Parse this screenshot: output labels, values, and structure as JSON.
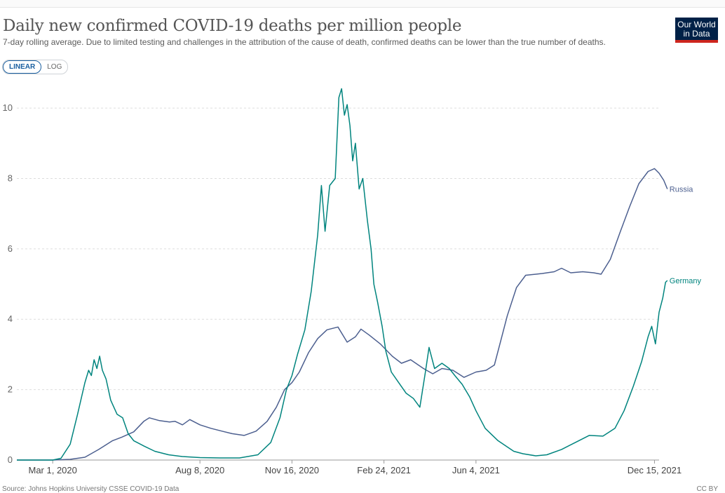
{
  "header": {
    "title": "Daily new confirmed COVID-19 deaths per million people",
    "subtitle": "7-day rolling average. Due to limited testing and challenges in the attribution of the cause of death, confirmed deaths can be lower than the true number of deaths.",
    "logo_line1": "Our World",
    "logo_line2": "in Data"
  },
  "controls": {
    "linear_label": "LINEAR",
    "log_label": "LOG",
    "selected": "LINEAR"
  },
  "footer": {
    "source": "Source: Johns Hopkins University CSSE COVID-19 Data",
    "license": "CC BY"
  },
  "colors": {
    "russia": "#4c5f8f",
    "germany": "#00847e",
    "grid": "#dddddd",
    "axis": "#999999"
  },
  "chart_data": {
    "type": "line",
    "title": "Daily new confirmed COVID-19 deaths per million people",
    "xlabel": "",
    "ylabel": "",
    "ylim": [
      0,
      10.6
    ],
    "x_range": [
      "2020-01-22",
      "2021-12-20"
    ],
    "y_ticks": [
      0,
      2,
      4,
      6,
      8,
      10
    ],
    "x_ticks": [
      {
        "date": "2020-03-01",
        "label": "Mar 1, 2020"
      },
      {
        "date": "2020-08-08",
        "label": "Aug 8, 2020"
      },
      {
        "date": "2020-11-16",
        "label": "Nov 16, 2020"
      },
      {
        "date": "2021-02-24",
        "label": "Feb 24, 2021"
      },
      {
        "date": "2021-06-04",
        "label": "Jun 4, 2021"
      },
      {
        "date": "2021-12-15",
        "label": "Dec 15, 2021"
      }
    ],
    "grid": "horizontal dashed",
    "legend": "line-end labels",
    "series": [
      {
        "name": "Russia",
        "points": [
          [
            "2020-01-22",
            0
          ],
          [
            "2020-03-01",
            0
          ],
          [
            "2020-03-20",
            0.02
          ],
          [
            "2020-04-05",
            0.08
          ],
          [
            "2020-04-20",
            0.3
          ],
          [
            "2020-05-05",
            0.55
          ],
          [
            "2020-05-15",
            0.65
          ],
          [
            "2020-05-28",
            0.8
          ],
          [
            "2020-06-08",
            1.1
          ],
          [
            "2020-06-14",
            1.2
          ],
          [
            "2020-06-25",
            1.12
          ],
          [
            "2020-07-06",
            1.08
          ],
          [
            "2020-07-12",
            1.1
          ],
          [
            "2020-07-20",
            1.0
          ],
          [
            "2020-07-28",
            1.15
          ],
          [
            "2020-08-08",
            1.0
          ],
          [
            "2020-08-20",
            0.9
          ],
          [
            "2020-09-01",
            0.82
          ],
          [
            "2020-09-12",
            0.75
          ],
          [
            "2020-09-25",
            0.7
          ],
          [
            "2020-10-08",
            0.82
          ],
          [
            "2020-10-20",
            1.1
          ],
          [
            "2020-10-30",
            1.5
          ],
          [
            "2020-11-08",
            2.0
          ],
          [
            "2020-11-16",
            2.2
          ],
          [
            "2020-11-24",
            2.5
          ],
          [
            "2020-12-04",
            3.05
          ],
          [
            "2020-12-14",
            3.45
          ],
          [
            "2020-12-24",
            3.7
          ],
          [
            "2021-01-05",
            3.78
          ],
          [
            "2021-01-15",
            3.35
          ],
          [
            "2021-01-24",
            3.5
          ],
          [
            "2021-01-30",
            3.72
          ],
          [
            "2021-02-08",
            3.55
          ],
          [
            "2021-02-20",
            3.3
          ],
          [
            "2021-03-05",
            2.95
          ],
          [
            "2021-03-15",
            2.75
          ],
          [
            "2021-03-25",
            2.85
          ],
          [
            "2021-04-08",
            2.6
          ],
          [
            "2021-04-18",
            2.45
          ],
          [
            "2021-04-28",
            2.6
          ],
          [
            "2021-05-10",
            2.55
          ],
          [
            "2021-05-22",
            2.35
          ],
          [
            "2021-06-04",
            2.5
          ],
          [
            "2021-06-15",
            2.55
          ],
          [
            "2021-06-24",
            2.7
          ],
          [
            "2021-07-01",
            3.4
          ],
          [
            "2021-07-08",
            4.1
          ],
          [
            "2021-07-18",
            4.9
          ],
          [
            "2021-07-28",
            5.25
          ],
          [
            "2021-08-15",
            5.3
          ],
          [
            "2021-08-28",
            5.35
          ],
          [
            "2021-09-05",
            5.45
          ],
          [
            "2021-09-15",
            5.32
          ],
          [
            "2021-09-28",
            5.35
          ],
          [
            "2021-10-10",
            5.32
          ],
          [
            "2021-10-18",
            5.28
          ],
          [
            "2021-10-28",
            5.7
          ],
          [
            "2021-11-08",
            6.5
          ],
          [
            "2021-11-18",
            7.2
          ],
          [
            "2021-11-28",
            7.85
          ],
          [
            "2021-12-08",
            8.2
          ],
          [
            "2021-12-15",
            8.28
          ],
          [
            "2021-12-20",
            8.15
          ],
          [
            "2021-12-25",
            7.95
          ],
          [
            "2021-12-29",
            7.7
          ]
        ]
      },
      {
        "name": "Germany",
        "points": [
          [
            "2020-01-22",
            0
          ],
          [
            "2020-03-01",
            0
          ],
          [
            "2020-03-10",
            0.05
          ],
          [
            "2020-03-20",
            0.45
          ],
          [
            "2020-03-28",
            1.3
          ],
          [
            "2020-04-05",
            2.2
          ],
          [
            "2020-04-09",
            2.55
          ],
          [
            "2020-04-12",
            2.4
          ],
          [
            "2020-04-15",
            2.85
          ],
          [
            "2020-04-18",
            2.6
          ],
          [
            "2020-04-21",
            2.95
          ],
          [
            "2020-04-24",
            2.55
          ],
          [
            "2020-04-28",
            2.3
          ],
          [
            "2020-05-03",
            1.7
          ],
          [
            "2020-05-10",
            1.3
          ],
          [
            "2020-05-16",
            1.2
          ],
          [
            "2020-05-22",
            0.75
          ],
          [
            "2020-05-28",
            0.55
          ],
          [
            "2020-06-08",
            0.4
          ],
          [
            "2020-06-20",
            0.25
          ],
          [
            "2020-07-05",
            0.15
          ],
          [
            "2020-07-20",
            0.1
          ],
          [
            "2020-08-08",
            0.07
          ],
          [
            "2020-08-30",
            0.06
          ],
          [
            "2020-09-20",
            0.06
          ],
          [
            "2020-10-10",
            0.15
          ],
          [
            "2020-10-24",
            0.5
          ],
          [
            "2020-11-03",
            1.2
          ],
          [
            "2020-11-10",
            2.0
          ],
          [
            "2020-11-16",
            2.4
          ],
          [
            "2020-11-22",
            3.0
          ],
          [
            "2020-11-30",
            3.7
          ],
          [
            "2020-12-07",
            4.8
          ],
          [
            "2020-12-14",
            6.4
          ],
          [
            "2020-12-18",
            7.8
          ],
          [
            "2020-12-22",
            6.5
          ],
          [
            "2020-12-27",
            7.8
          ],
          [
            "2021-01-02",
            8.0
          ],
          [
            "2021-01-06",
            10.3
          ],
          [
            "2021-01-09",
            10.55
          ],
          [
            "2021-01-12",
            9.8
          ],
          [
            "2021-01-15",
            10.1
          ],
          [
            "2021-01-18",
            9.5
          ],
          [
            "2021-01-21",
            8.5
          ],
          [
            "2021-01-24",
            9.0
          ],
          [
            "2021-01-28",
            7.7
          ],
          [
            "2021-02-01",
            8.0
          ],
          [
            "2021-02-06",
            6.8
          ],
          [
            "2021-02-10",
            6.0
          ],
          [
            "2021-02-13",
            5.0
          ],
          [
            "2021-02-17",
            4.5
          ],
          [
            "2021-02-22",
            3.8
          ],
          [
            "2021-02-26",
            3.1
          ],
          [
            "2021-03-04",
            2.5
          ],
          [
            "2021-03-12",
            2.2
          ],
          [
            "2021-03-20",
            1.9
          ],
          [
            "2021-03-28",
            1.75
          ],
          [
            "2021-04-04",
            1.5
          ],
          [
            "2021-04-10",
            2.5
          ],
          [
            "2021-04-14",
            3.2
          ],
          [
            "2021-04-20",
            2.6
          ],
          [
            "2021-04-28",
            2.75
          ],
          [
            "2021-05-06",
            2.6
          ],
          [
            "2021-05-12",
            2.4
          ],
          [
            "2021-05-20",
            2.15
          ],
          [
            "2021-05-28",
            1.8
          ],
          [
            "2021-06-04",
            1.4
          ],
          [
            "2021-06-14",
            0.9
          ],
          [
            "2021-06-28",
            0.55
          ],
          [
            "2021-07-15",
            0.25
          ],
          [
            "2021-07-25",
            0.18
          ],
          [
            "2021-08-08",
            0.12
          ],
          [
            "2021-08-20",
            0.15
          ],
          [
            "2021-09-05",
            0.3
          ],
          [
            "2021-09-20",
            0.5
          ],
          [
            "2021-10-05",
            0.7
          ],
          [
            "2021-10-20",
            0.68
          ],
          [
            "2021-11-02",
            0.9
          ],
          [
            "2021-11-12",
            1.4
          ],
          [
            "2021-11-22",
            2.1
          ],
          [
            "2021-12-01",
            2.8
          ],
          [
            "2021-12-08",
            3.5
          ],
          [
            "2021-12-12",
            3.8
          ],
          [
            "2021-12-16",
            3.3
          ],
          [
            "2021-12-20",
            4.2
          ],
          [
            "2021-12-24",
            4.6
          ],
          [
            "2021-12-27",
            5.05
          ],
          [
            "2021-12-29",
            5.1
          ]
        ]
      }
    ]
  }
}
